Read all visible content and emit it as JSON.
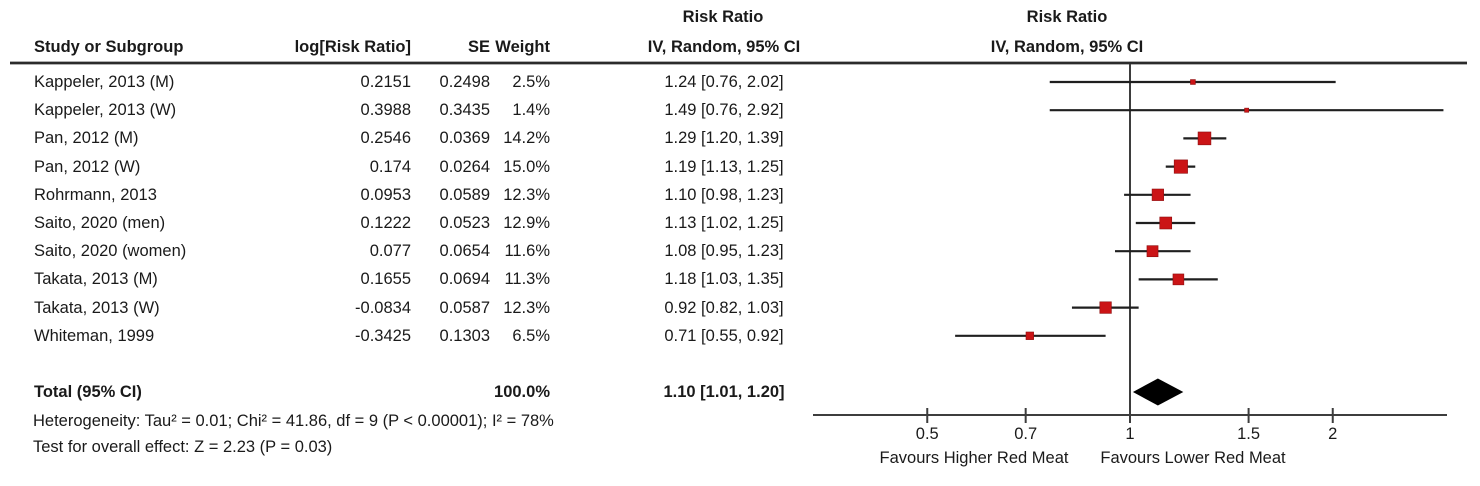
{
  "table": {
    "headers": {
      "study": "Study or Subgroup",
      "log_rr": "log[Risk Ratio]",
      "se": "SE",
      "weight": "Weight",
      "effect_top": "Risk Ratio",
      "effect_bottom": "IV, Random, 95% CI"
    },
    "plot_headers": {
      "top": "Risk Ratio",
      "bottom": "IV, Random, 95% CI"
    }
  },
  "studies": [
    {
      "label": "Kappeler, 2013 (M)",
      "log_rr": "0.2151",
      "se": "0.2498",
      "weight": "2.5%",
      "ci_text": "1.24 [0.76, 2.02]",
      "rr": 1.24,
      "lo": 0.76,
      "hi": 2.02,
      "weight_pct": 2.5
    },
    {
      "label": "Kappeler, 2013 (W)",
      "log_rr": "0.3988",
      "se": "0.3435",
      "weight": "1.4%",
      "ci_text": "1.49 [0.76, 2.92]",
      "rr": 1.49,
      "lo": 0.76,
      "hi": 2.92,
      "weight_pct": 1.4
    },
    {
      "label": "Pan, 2012 (M)",
      "log_rr": "0.2546",
      "se": "0.0369",
      "weight": "14.2%",
      "ci_text": "1.29 [1.20, 1.39]",
      "rr": 1.29,
      "lo": 1.2,
      "hi": 1.39,
      "weight_pct": 14.2
    },
    {
      "label": "Pan, 2012 (W)",
      "log_rr": "0.174",
      "se": "0.0264",
      "weight": "15.0%",
      "ci_text": "1.19 [1.13, 1.25]",
      "rr": 1.19,
      "lo": 1.13,
      "hi": 1.25,
      "weight_pct": 15.0
    },
    {
      "label": "Rohrmann, 2013",
      "log_rr": "0.0953",
      "se": "0.0589",
      "weight": "12.3%",
      "ci_text": "1.10 [0.98, 1.23]",
      "rr": 1.1,
      "lo": 0.98,
      "hi": 1.23,
      "weight_pct": 12.3
    },
    {
      "label": "Saito, 2020 (men)",
      "log_rr": "0.1222",
      "se": "0.0523",
      "weight": "12.9%",
      "ci_text": "1.13 [1.02, 1.25]",
      "rr": 1.13,
      "lo": 1.02,
      "hi": 1.25,
      "weight_pct": 12.9
    },
    {
      "label": "Saito, 2020 (women)",
      "log_rr": "0.077",
      "se": "0.0654",
      "weight": "11.6%",
      "ci_text": "1.08 [0.95, 1.23]",
      "rr": 1.08,
      "lo": 0.95,
      "hi": 1.23,
      "weight_pct": 11.6
    },
    {
      "label": "Takata, 2013 (M)",
      "log_rr": "0.1655",
      "se": "0.0694",
      "weight": "11.3%",
      "ci_text": "1.18 [1.03, 1.35]",
      "rr": 1.18,
      "lo": 1.03,
      "hi": 1.35,
      "weight_pct": 11.3
    },
    {
      "label": "Takata, 2013 (W)",
      "log_rr": "-0.0834",
      "se": "0.0587",
      "weight": "12.3%",
      "ci_text": "0.92 [0.82, 1.03]",
      "rr": 0.92,
      "lo": 0.82,
      "hi": 1.03,
      "weight_pct": 12.3
    },
    {
      "label": "Whiteman, 1999",
      "log_rr": "-0.3425",
      "se": "0.1303",
      "weight": "6.5%",
      "ci_text": "0.71 [0.55, 0.92]",
      "rr": 0.71,
      "lo": 0.55,
      "hi": 0.92,
      "weight_pct": 6.5
    }
  ],
  "total": {
    "label": "Total (95% CI)",
    "weight": "100.0%",
    "ci_text": "1.10 [1.01, 1.20]",
    "rr": 1.1,
    "lo": 1.01,
    "hi": 1.2
  },
  "footnotes": {
    "heterogeneity": "Heterogeneity: Tau² = 0.01; Chi² = 41.86, df = 9 (P < 0.00001); I² = 78%",
    "overall_effect": "Test for overall effect: Z = 2.23 (P = 0.03)"
  },
  "axis": {
    "scale": "log",
    "ticks": [
      0.5,
      0.7,
      1,
      1.5,
      2
    ],
    "tick_labels": [
      "0.5",
      "0.7",
      "1",
      "1.5",
      "2"
    ],
    "favours_left": "Favours Higher Red Meat",
    "favours_right": "Favours Lower Red Meat"
  },
  "colors": {
    "square": "#cb1416",
    "diamond": "#000000",
    "ci_line": "#1f1f1f",
    "axis_line": "#3d3d3d",
    "rule": "#2b2b2b"
  },
  "chart_data": {
    "type": "scatter",
    "subtype": "forest-plot-meta-analysis",
    "effect_measure": "Risk Ratio, IV, Random, 95% CI",
    "x_scale": "log",
    "x_ticks": [
      0.5,
      0.7,
      1,
      1.5,
      2
    ],
    "x_axis_range": [
      0.34,
      2.95
    ],
    "direction_labels": {
      "left": "Favours Higher Red Meat",
      "right": "Favours Lower Red Meat"
    },
    "studies": [
      {
        "name": "Kappeler, 2013 (M)",
        "rr": 1.24,
        "ci": [
          0.76,
          2.02
        ],
        "weight_pct": 2.5
      },
      {
        "name": "Kappeler, 2013 (W)",
        "rr": 1.49,
        "ci": [
          0.76,
          2.92
        ],
        "weight_pct": 1.4
      },
      {
        "name": "Pan, 2012 (M)",
        "rr": 1.29,
        "ci": [
          1.2,
          1.39
        ],
        "weight_pct": 14.2
      },
      {
        "name": "Pan, 2012 (W)",
        "rr": 1.19,
        "ci": [
          1.13,
          1.25
        ],
        "weight_pct": 15.0
      },
      {
        "name": "Rohrmann, 2013",
        "rr": 1.1,
        "ci": [
          0.98,
          1.23
        ],
        "weight_pct": 12.3
      },
      {
        "name": "Saito, 2020 (men)",
        "rr": 1.13,
        "ci": [
          1.02,
          1.25
        ],
        "weight_pct": 12.9
      },
      {
        "name": "Saito, 2020 (women)",
        "rr": 1.08,
        "ci": [
          0.95,
          1.23
        ],
        "weight_pct": 11.6
      },
      {
        "name": "Takata, 2013 (M)",
        "rr": 1.18,
        "ci": [
          1.03,
          1.35
        ],
        "weight_pct": 11.3
      },
      {
        "name": "Takata, 2013 (W)",
        "rr": 0.92,
        "ci": [
          0.82,
          1.03
        ],
        "weight_pct": 12.3
      },
      {
        "name": "Whiteman, 1999",
        "rr": 0.71,
        "ci": [
          0.55,
          0.92
        ],
        "weight_pct": 6.5
      }
    ],
    "summary": {
      "name": "Total (95% CI)",
      "rr": 1.1,
      "ci": [
        1.01,
        1.2
      ],
      "weight_pct": 100.0
    },
    "heterogeneity": {
      "tau2": 0.01,
      "chi2": 41.86,
      "df": 9,
      "p": "< 0.00001",
      "i2_pct": 78
    },
    "overall_effect_test": {
      "z": 2.23,
      "p": 0.03
    }
  }
}
